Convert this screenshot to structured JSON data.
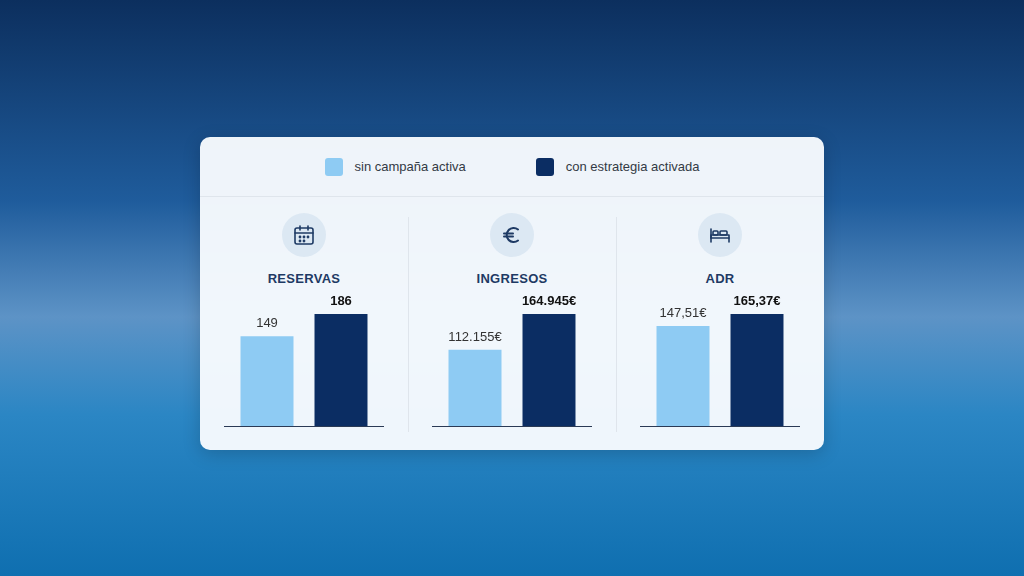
{
  "chart_data": [
    {
      "type": "bar",
      "title": "RESERVAS",
      "categories": [
        null
      ],
      "series": [
        {
          "name": "sin campaña activa",
          "color": "#8ecbf3",
          "values": [
            149
          ]
        },
        {
          "name": "con estrategia activada",
          "color": "#0b2d63",
          "values": [
            186
          ]
        }
      ],
      "ylim": [
        0,
        186
      ],
      "grid": false,
      "legend": "top",
      "data_labels": true,
      "tick_labels": false
    },
    {
      "type": "bar",
      "title": "INGRESOS",
      "categories": [
        null
      ],
      "series": [
        {
          "name": "sin campaña activa",
          "color": "#8ecbf3",
          "values": [
            112155
          ],
          "value_labels": [
            "112.155€"
          ]
        },
        {
          "name": "con estrategia activada",
          "color": "#0b2d63",
          "values": [
            164945
          ],
          "value_labels": [
            "164.945€"
          ]
        }
      ],
      "ylim": [
        0,
        164945
      ],
      "grid": false,
      "legend": "top",
      "data_labels": true,
      "tick_labels": false
    },
    {
      "type": "bar",
      "title": "ADR",
      "categories": [
        null
      ],
      "series": [
        {
          "name": "sin campaña activa",
          "color": "#8ecbf3",
          "values": [
            147.51
          ],
          "value_labels": [
            "147,51€"
          ]
        },
        {
          "name": "con estrategia activada",
          "color": "#0b2d63",
          "values": [
            165.37
          ],
          "value_labels": [
            "165,37€"
          ]
        }
      ],
      "ylim": [
        0,
        165.37
      ],
      "grid": false,
      "legend": "top",
      "data_labels": true,
      "tick_labels": false
    }
  ]
}
